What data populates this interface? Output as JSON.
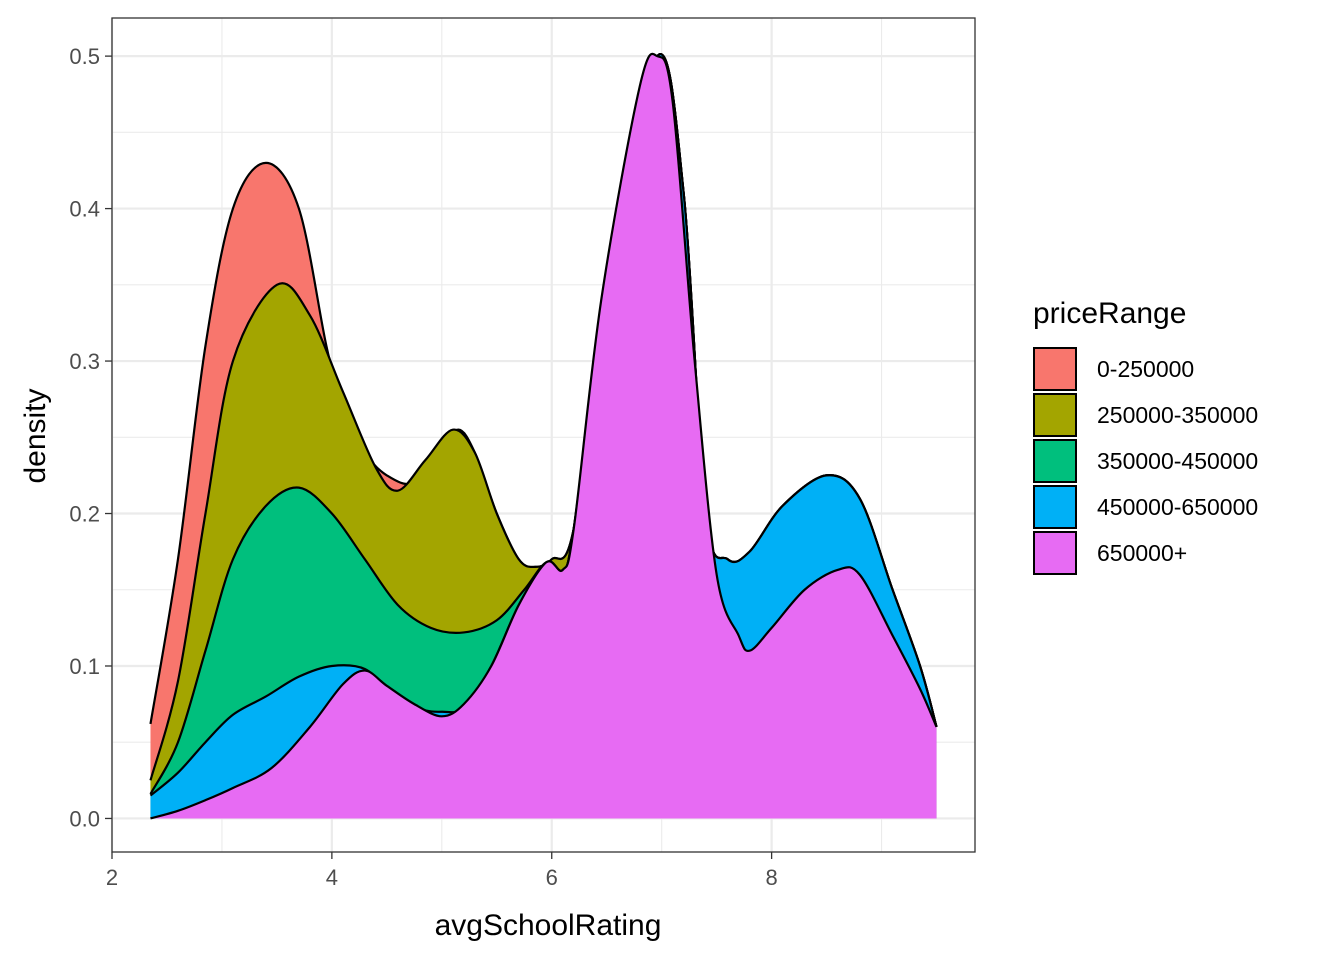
{
  "chart_data": {
    "type": "area",
    "xlabel": "avgSchoolRating",
    "ylabel": "density",
    "xlim": [
      2,
      9.85
    ],
    "ylim": [
      -0.022,
      0.525
    ],
    "x_ticks": [
      2,
      4,
      6,
      8
    ],
    "y_ticks": [
      0.0,
      0.1,
      0.2,
      0.3,
      0.4,
      0.5
    ],
    "x_tick_labels": [
      "2",
      "4",
      "6",
      "8"
    ],
    "y_tick_labels": [
      "0.0",
      "0.1",
      "0.2",
      "0.3",
      "0.4",
      "0.5"
    ],
    "grid": true,
    "theme": "bw",
    "legend": {
      "title": "priceRange",
      "placement": "right"
    },
    "stacked": true,
    "series": [
      {
        "name": "0-250000",
        "color": "#F8766D",
        "top": [
          [
            2.35,
            0.062
          ],
          [
            2.6,
            0.17
          ],
          [
            2.85,
            0.31
          ],
          [
            3.1,
            0.4
          ],
          [
            3.4,
            0.43
          ],
          [
            3.7,
            0.4
          ],
          [
            3.95,
            0.31
          ],
          [
            4.1,
            0.27
          ],
          [
            4.3,
            0.24
          ],
          [
            4.5,
            0.225
          ],
          [
            4.75,
            0.22
          ],
          [
            5.0,
            0.24
          ],
          [
            5.15,
            0.255
          ],
          [
            5.3,
            0.24
          ],
          [
            5.5,
            0.2
          ],
          [
            5.7,
            0.17
          ],
          [
            5.85,
            0.165
          ],
          [
            6.0,
            0.17
          ],
          [
            6.2,
            0.19
          ],
          [
            6.5,
            0.35
          ],
          [
            6.96,
            0.5
          ],
          [
            7.2,
            0.41
          ],
          [
            7.4,
            0.2
          ],
          [
            7.6,
            0.17
          ],
          [
            7.8,
            0.175
          ],
          [
            8.1,
            0.205
          ],
          [
            8.5,
            0.225
          ],
          [
            8.8,
            0.21
          ],
          [
            9.1,
            0.15
          ],
          [
            9.35,
            0.1
          ],
          [
            9.5,
            0.06
          ]
        ]
      },
      {
        "name": "250000-350000",
        "color": "#A3A500",
        "top": [
          [
            2.35,
            0.025
          ],
          [
            2.6,
            0.09
          ],
          [
            2.85,
            0.2
          ],
          [
            3.1,
            0.3
          ],
          [
            3.5,
            0.35
          ],
          [
            3.8,
            0.33
          ],
          [
            4.1,
            0.28
          ],
          [
            4.4,
            0.23
          ],
          [
            4.6,
            0.215
          ],
          [
            4.85,
            0.235
          ],
          [
            5.1,
            0.255
          ],
          [
            5.3,
            0.24
          ],
          [
            5.5,
            0.2
          ],
          [
            5.7,
            0.17
          ],
          [
            5.85,
            0.165
          ],
          [
            6.0,
            0.17
          ],
          [
            6.2,
            0.19
          ],
          [
            6.5,
            0.35
          ],
          [
            6.96,
            0.5
          ],
          [
            7.2,
            0.41
          ],
          [
            7.4,
            0.2
          ],
          [
            7.6,
            0.17
          ],
          [
            7.8,
            0.175
          ],
          [
            8.1,
            0.205
          ],
          [
            8.5,
            0.225
          ],
          [
            8.8,
            0.21
          ],
          [
            9.1,
            0.15
          ],
          [
            9.35,
            0.1
          ],
          [
            9.5,
            0.06
          ]
        ]
      },
      {
        "name": "350000-450000",
        "color": "#00BF7D",
        "top": [
          [
            2.35,
            0.016
          ],
          [
            2.6,
            0.05
          ],
          [
            2.85,
            0.11
          ],
          [
            3.1,
            0.17
          ],
          [
            3.4,
            0.205
          ],
          [
            3.7,
            0.217
          ],
          [
            4.0,
            0.2
          ],
          [
            4.3,
            0.17
          ],
          [
            4.6,
            0.14
          ],
          [
            4.9,
            0.125
          ],
          [
            5.2,
            0.122
          ],
          [
            5.5,
            0.13
          ],
          [
            5.75,
            0.15
          ],
          [
            5.95,
            0.168
          ],
          [
            6.1,
            0.163
          ],
          [
            6.2,
            0.19
          ],
          [
            6.5,
            0.35
          ],
          [
            6.96,
            0.5
          ],
          [
            7.2,
            0.41
          ],
          [
            7.4,
            0.2
          ],
          [
            7.6,
            0.17
          ],
          [
            7.8,
            0.175
          ],
          [
            8.1,
            0.205
          ],
          [
            8.5,
            0.225
          ],
          [
            8.8,
            0.21
          ],
          [
            9.1,
            0.15
          ],
          [
            9.35,
            0.1
          ],
          [
            9.5,
            0.06
          ]
        ]
      },
      {
        "name": "450000-650000",
        "color": "#00B0F6",
        "top": [
          [
            2.35,
            0.015
          ],
          [
            2.6,
            0.03
          ],
          [
            2.85,
            0.05
          ],
          [
            3.1,
            0.068
          ],
          [
            3.4,
            0.08
          ],
          [
            3.7,
            0.093
          ],
          [
            4.0,
            0.1
          ],
          [
            4.3,
            0.098
          ],
          [
            4.55,
            0.082
          ],
          [
            4.8,
            0.072
          ],
          [
            5.0,
            0.07
          ],
          [
            5.2,
            0.073
          ],
          [
            5.45,
            0.1
          ],
          [
            5.7,
            0.14
          ],
          [
            5.95,
            0.168
          ],
          [
            6.1,
            0.163
          ],
          [
            6.2,
            0.19
          ],
          [
            6.5,
            0.35
          ],
          [
            6.96,
            0.5
          ],
          [
            7.2,
            0.41
          ],
          [
            7.4,
            0.2
          ],
          [
            7.6,
            0.17
          ],
          [
            7.8,
            0.175
          ],
          [
            8.1,
            0.205
          ],
          [
            8.5,
            0.225
          ],
          [
            8.8,
            0.21
          ],
          [
            9.1,
            0.15
          ],
          [
            9.35,
            0.1
          ],
          [
            9.5,
            0.06
          ]
        ]
      },
      {
        "name": "650000+",
        "color": "#E76BF3",
        "top": [
          [
            2.35,
            0.0
          ],
          [
            2.6,
            0.005
          ],
          [
            2.85,
            0.012
          ],
          [
            3.1,
            0.02
          ],
          [
            3.45,
            0.033
          ],
          [
            3.8,
            0.06
          ],
          [
            4.1,
            0.088
          ],
          [
            4.3,
            0.097
          ],
          [
            4.5,
            0.087
          ],
          [
            4.75,
            0.075
          ],
          [
            5.0,
            0.067
          ],
          [
            5.2,
            0.075
          ],
          [
            5.45,
            0.1
          ],
          [
            5.7,
            0.14
          ],
          [
            5.95,
            0.168
          ],
          [
            6.1,
            0.163
          ],
          [
            6.2,
            0.19
          ],
          [
            6.45,
            0.34
          ],
          [
            6.8,
            0.48
          ],
          [
            6.96,
            0.5
          ],
          [
            7.1,
            0.47
          ],
          [
            7.3,
            0.3
          ],
          [
            7.5,
            0.16
          ],
          [
            7.7,
            0.12
          ],
          [
            7.8,
            0.11
          ],
          [
            8.0,
            0.125
          ],
          [
            8.3,
            0.15
          ],
          [
            8.6,
            0.163
          ],
          [
            8.8,
            0.16
          ],
          [
            9.1,
            0.12
          ],
          [
            9.35,
            0.085
          ],
          [
            9.5,
            0.06
          ]
        ]
      }
    ]
  }
}
